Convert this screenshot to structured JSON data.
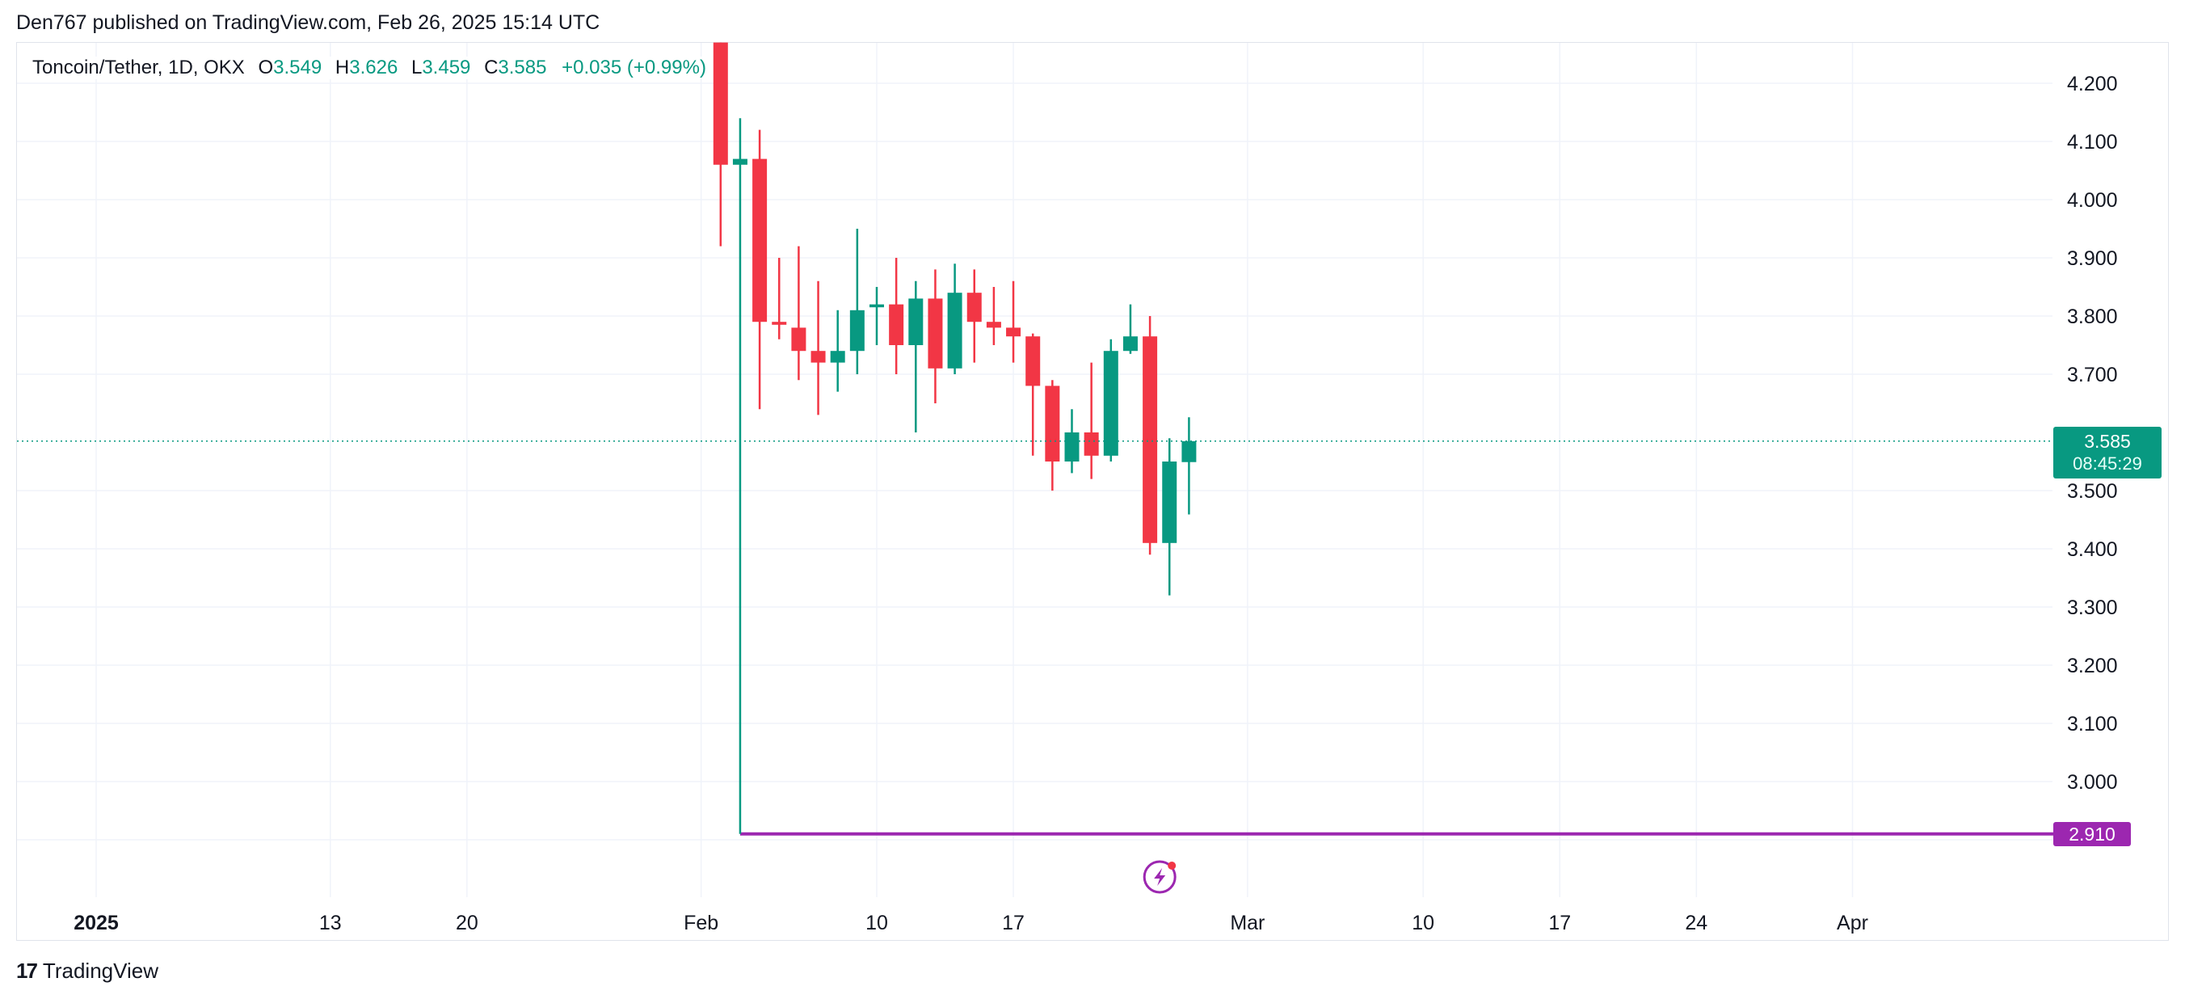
{
  "header": {
    "published": "Den767 published on TradingView.com, Feb 26, 2025 15:14 UTC"
  },
  "legend": {
    "symbol": "Toncoin/Tether, 1D, OKX",
    "o_label": "O",
    "o_value": "3.549",
    "h_label": "H",
    "h_value": "3.626",
    "l_label": "L",
    "l_value": "3.459",
    "c_label": "C",
    "c_value": "3.585",
    "change": "+0.035 (+0.99%)"
  },
  "price_tag": {
    "value": "3.585",
    "countdown": "08:45:29"
  },
  "hline_tag": {
    "value": "2.910"
  },
  "brand": {
    "name": "TradingView",
    "logo_text": "17"
  },
  "colors": {
    "up": "#089981",
    "down": "#f23645",
    "hline": "#9c27b0",
    "grid": "#f0f3fa"
  },
  "chart_data": {
    "type": "candlestick",
    "title": "Toncoin/Tether, 1D, OKX",
    "ylim": [
      2.77,
      4.27
    ],
    "y_ticks": [
      "4.200",
      "4.100",
      "4.000",
      "3.900",
      "3.800",
      "3.700",
      "3.500",
      "3.400",
      "3.300",
      "3.200",
      "3.100",
      "3.000"
    ],
    "x_ticks": [
      {
        "label": "2025",
        "day": -4,
        "bold": true
      },
      {
        "label": "13",
        "day": 8
      },
      {
        "label": "20",
        "day": 15
      },
      {
        "label": "Feb",
        "day": 27
      },
      {
        "label": "10",
        "day": 36
      },
      {
        "label": "17",
        "day": 43
      },
      {
        "label": "Mar",
        "day": 55
      },
      {
        "label": "10",
        "day": 64
      },
      {
        "label": "17",
        "day": 71
      },
      {
        "label": "24",
        "day": 78
      },
      {
        "label": "Apr",
        "day": 86
      }
    ],
    "candles": [
      {
        "day": 28,
        "o": 4.27,
        "h": 4.27,
        "l": 3.92,
        "c": 4.06
      },
      {
        "day": 29,
        "o": 4.06,
        "h": 4.14,
        "l": 2.91,
        "c": 4.07
      },
      {
        "day": 30,
        "o": 4.07,
        "h": 4.12,
        "l": 3.64,
        "c": 3.79
      },
      {
        "day": 31,
        "o": 3.79,
        "h": 3.9,
        "l": 3.76,
        "c": 3.785
      },
      {
        "day": 32,
        "o": 3.78,
        "h": 3.92,
        "l": 3.69,
        "c": 3.74
      },
      {
        "day": 33,
        "o": 3.74,
        "h": 3.86,
        "l": 3.63,
        "c": 3.72
      },
      {
        "day": 34,
        "o": 3.72,
        "h": 3.81,
        "l": 3.67,
        "c": 3.74
      },
      {
        "day": 35,
        "o": 3.74,
        "h": 3.95,
        "l": 3.7,
        "c": 3.81
      },
      {
        "day": 36,
        "o": 3.815,
        "h": 3.85,
        "l": 3.75,
        "c": 3.82
      },
      {
        "day": 37,
        "o": 3.82,
        "h": 3.9,
        "l": 3.7,
        "c": 3.75
      },
      {
        "day": 38,
        "o": 3.75,
        "h": 3.86,
        "l": 3.6,
        "c": 3.83
      },
      {
        "day": 39,
        "o": 3.83,
        "h": 3.88,
        "l": 3.65,
        "c": 3.71
      },
      {
        "day": 40,
        "o": 3.71,
        "h": 3.89,
        "l": 3.7,
        "c": 3.84
      },
      {
        "day": 41,
        "o": 3.84,
        "h": 3.88,
        "l": 3.72,
        "c": 3.79
      },
      {
        "day": 42,
        "o": 3.79,
        "h": 3.85,
        "l": 3.75,
        "c": 3.78
      },
      {
        "day": 43,
        "o": 3.78,
        "h": 3.86,
        "l": 3.72,
        "c": 3.765
      },
      {
        "day": 44,
        "o": 3.765,
        "h": 3.77,
        "l": 3.56,
        "c": 3.68
      },
      {
        "day": 45,
        "o": 3.68,
        "h": 3.69,
        "l": 3.5,
        "c": 3.55
      },
      {
        "day": 46,
        "o": 3.55,
        "h": 3.64,
        "l": 3.53,
        "c": 3.6
      },
      {
        "day": 47,
        "o": 3.6,
        "h": 3.72,
        "l": 3.52,
        "c": 3.56
      },
      {
        "day": 48,
        "o": 3.56,
        "h": 3.76,
        "l": 3.55,
        "c": 3.74
      },
      {
        "day": 49,
        "o": 3.74,
        "h": 3.82,
        "l": 3.735,
        "c": 3.765
      },
      {
        "day": 50,
        "o": 3.765,
        "h": 3.8,
        "l": 3.39,
        "c": 3.41
      },
      {
        "day": 51,
        "o": 3.41,
        "h": 3.59,
        "l": 3.32,
        "c": 3.55
      },
      {
        "day": 52,
        "o": 3.549,
        "h": 3.626,
        "l": 3.459,
        "c": 3.585
      }
    ],
    "last_price": 3.585,
    "horizontal_line": {
      "price": 2.91,
      "start_day": 29
    }
  }
}
